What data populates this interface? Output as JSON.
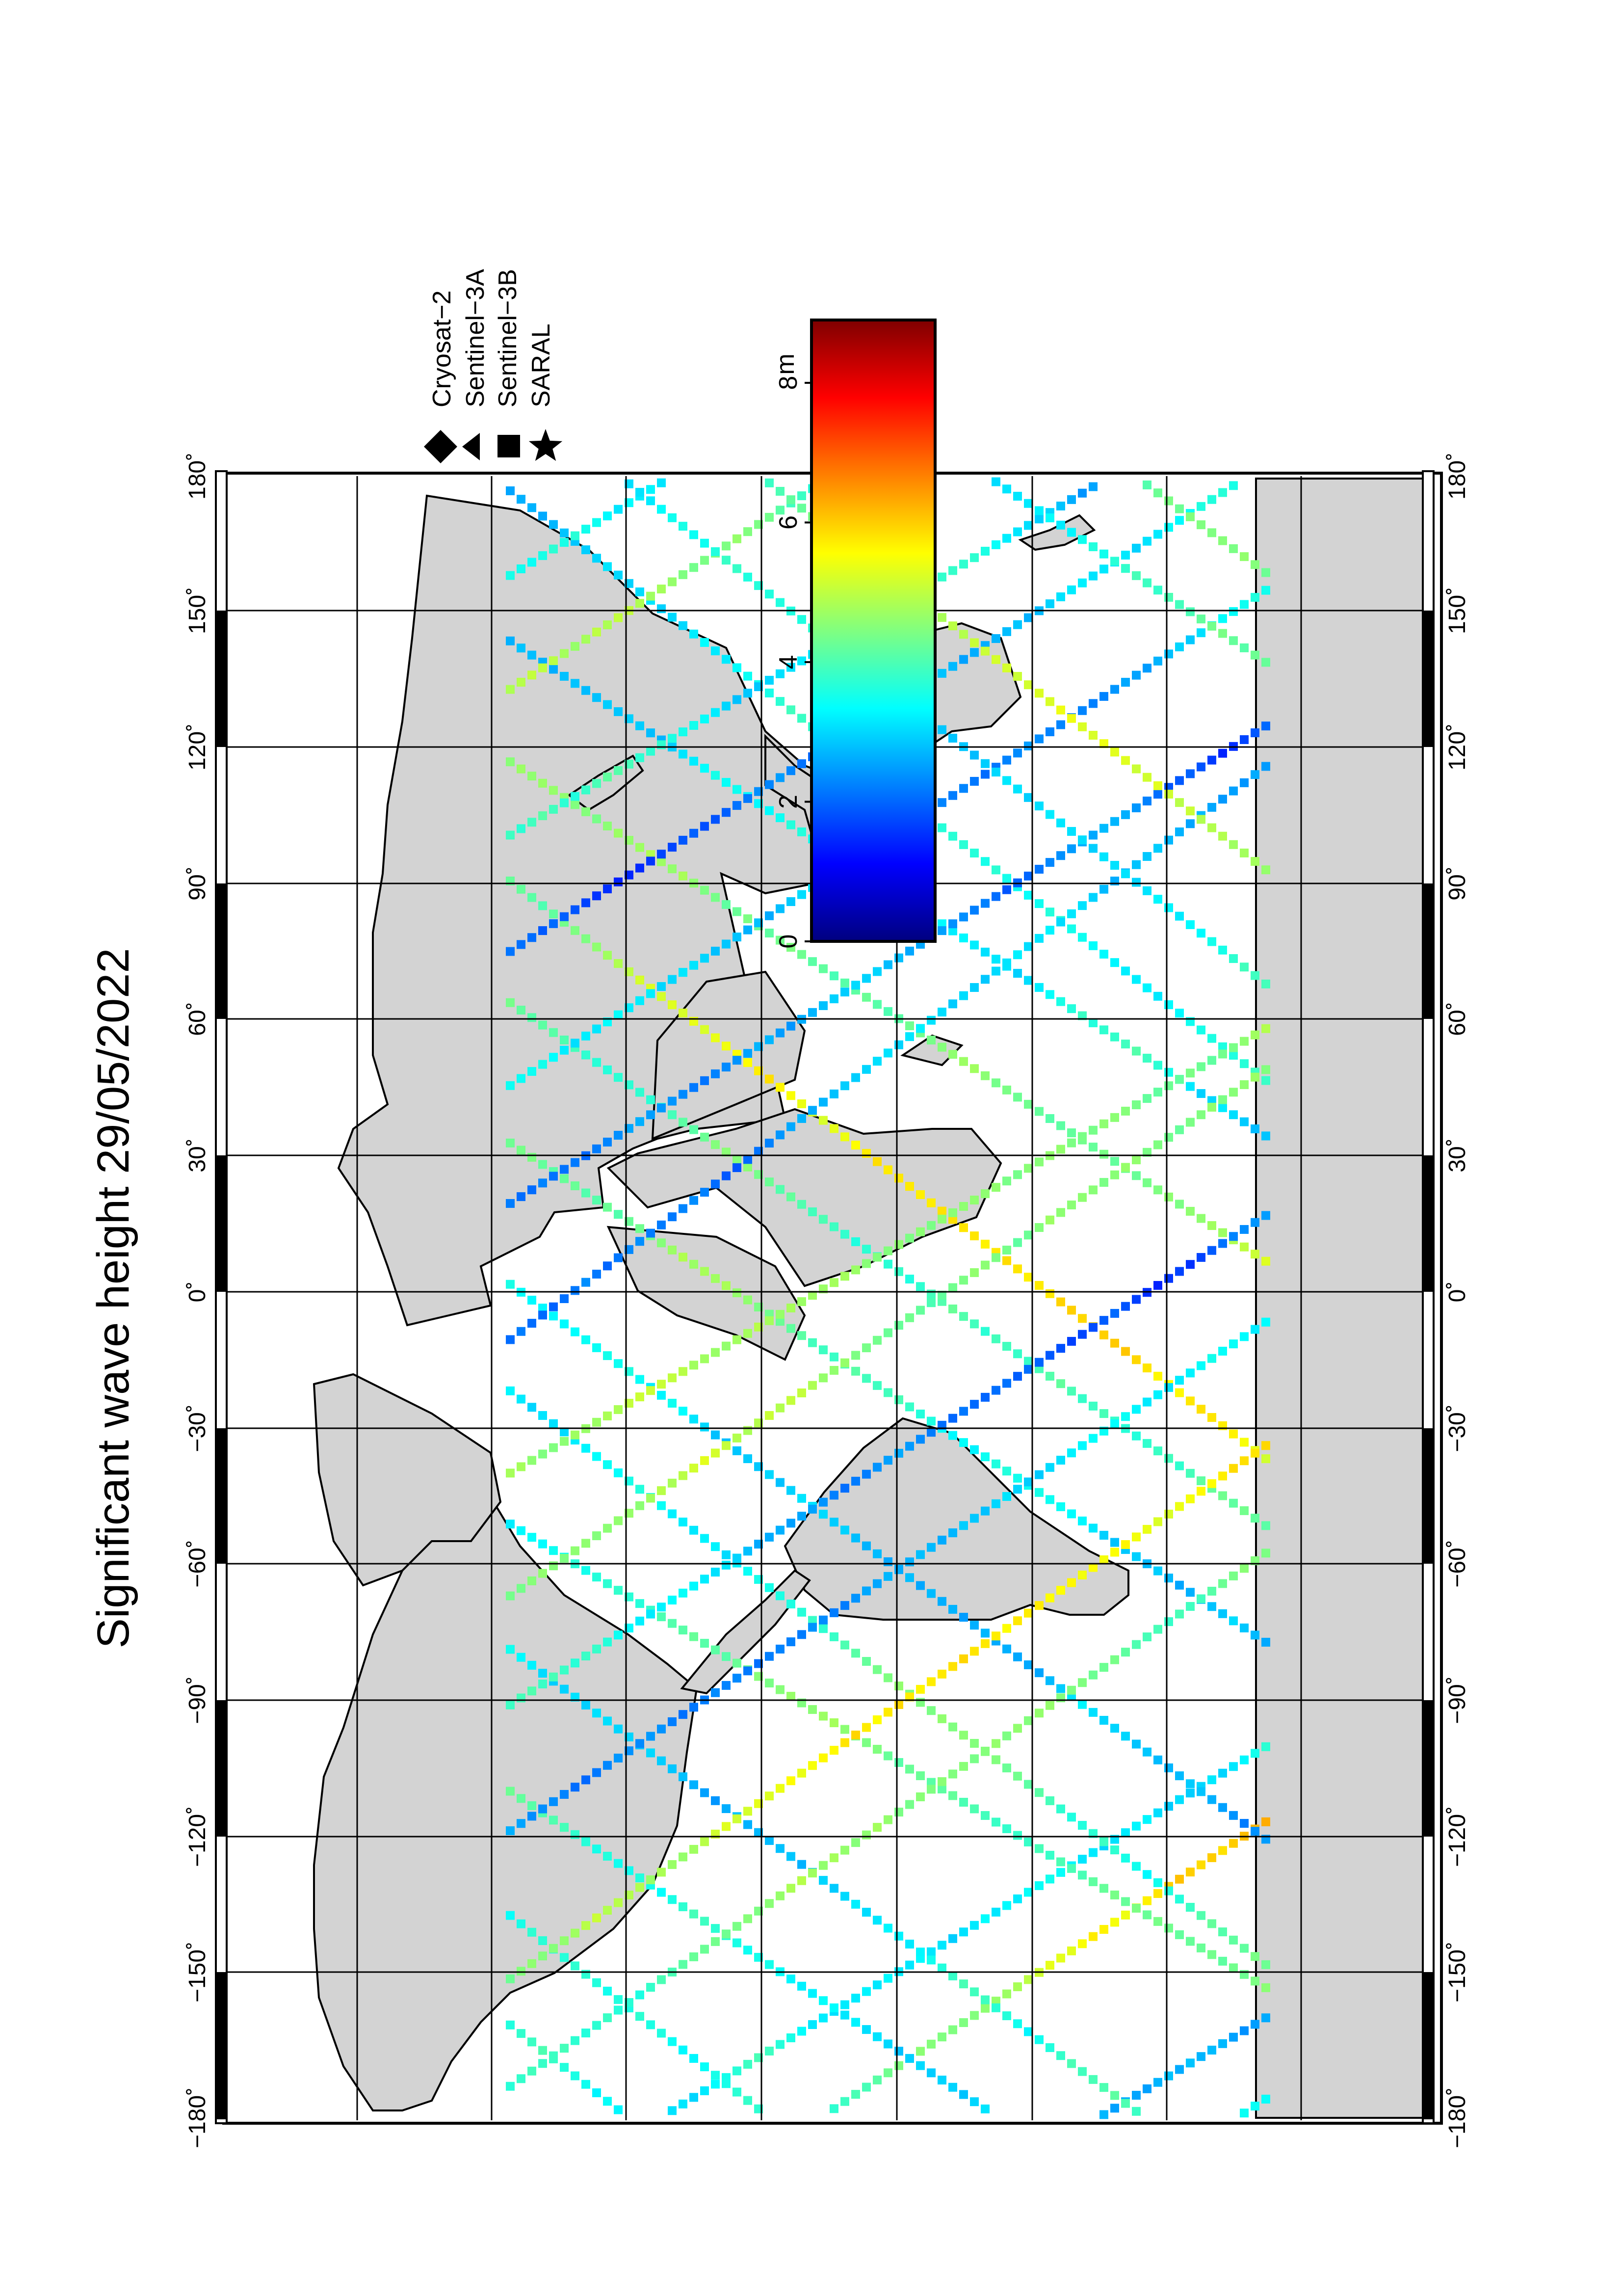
{
  "title": "Significant wave height 29/05/2022",
  "longitude_labels": [
    "−180˚",
    "−150˚",
    "−120˚",
    "−90˚",
    "−60˚",
    "−30˚",
    "0˚",
    "30˚",
    "60˚",
    "90˚",
    "120˚",
    "150˚",
    "180˚"
  ],
  "legend": {
    "items": [
      {
        "symbol": "diamond",
        "label": "Cryosat−2"
      },
      {
        "symbol": "triangle",
        "label": "Sentinel−3A"
      },
      {
        "symbol": "square",
        "label": "Sentinel−3B"
      },
      {
        "symbol": "star",
        "label": "SARAL"
      }
    ]
  },
  "colorbar": {
    "unit": "m",
    "ticks": [
      "0",
      "2",
      "4",
      "6",
      "8"
    ],
    "range": [
      0,
      8.9
    ],
    "colors": [
      "#00007f",
      "#0000ff",
      "#0080ff",
      "#00ffff",
      "#80ff80",
      "#ffff00",
      "#ff8000",
      "#ff0000",
      "#7f0000"
    ]
  },
  "colors": {
    "land": "#d3d3d3",
    "ocean": "#ffffff",
    "grid": "#000000"
  }
}
